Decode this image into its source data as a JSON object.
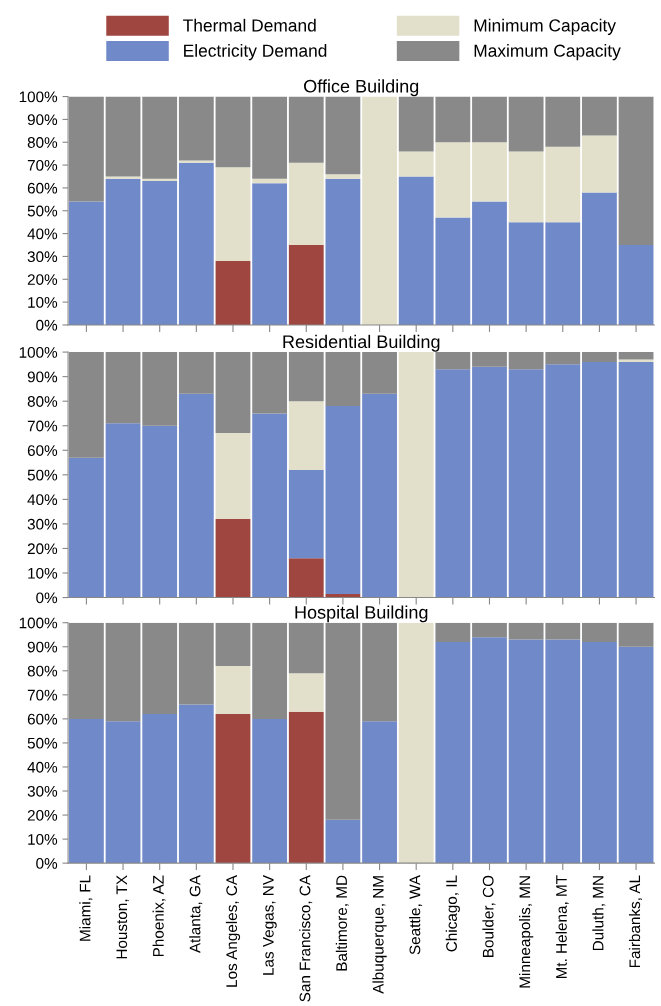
{
  "chart_data": [
    {
      "type": "bar",
      "title": "Office Building",
      "stacked": true,
      "legend": "top",
      "tick_labels": "y",
      "categories": [
        null,
        null,
        null,
        null,
        null,
        null,
        null,
        null,
        null,
        null,
        null,
        null,
        null,
        null,
        null,
        null
      ],
      "ylim": [
        0,
        100
      ],
      "yticks": [
        {
          "value": 0,
          "label": "0%"
        },
        {
          "value": 10,
          "label": "10%"
        },
        {
          "value": 20,
          "label": "20%"
        },
        {
          "value": 30,
          "label": "30%"
        },
        {
          "value": 40,
          "label": "40%"
        },
        {
          "value": 50,
          "label": "50%"
        },
        {
          "value": 60,
          "label": "60%"
        },
        {
          "value": 70,
          "label": "70%"
        },
        {
          "value": 80,
          "label": "80%"
        },
        {
          "value": 90,
          "label": "90%"
        },
        {
          "value": 100,
          "label": "100%"
        }
      ],
      "series": [
        {
          "name": "Thermal Demand",
          "color": "#a04641",
          "values": [
            0,
            0,
            0,
            0,
            28,
            0,
            35,
            0,
            0,
            0,
            0,
            0,
            0,
            0,
            0,
            0
          ]
        },
        {
          "name": "Electricity Demand",
          "color": "#7089c8",
          "values": [
            54,
            64,
            63,
            71,
            0,
            62,
            0,
            64,
            0,
            65,
            47,
            54,
            45,
            45,
            58,
            35
          ]
        },
        {
          "name": "Minimum Capacity",
          "color": "#e2dfcb",
          "values": [
            0,
            1,
            1,
            1,
            41,
            2,
            36,
            2,
            100,
            11,
            33,
            26,
            31,
            33,
            25,
            0
          ]
        },
        {
          "name": "Maximum Capacity",
          "color": "#898989",
          "values": [
            46,
            35,
            36,
            28,
            31,
            36,
            29,
            34,
            0,
            24,
            20,
            20,
            24,
            22,
            17,
            65
          ]
        }
      ]
    },
    {
      "type": "bar",
      "title": "Residential Building",
      "stacked": true,
      "tick_labels": "y",
      "categories": [
        null,
        null,
        null,
        null,
        null,
        null,
        null,
        null,
        null,
        null,
        null,
        null,
        null,
        null,
        null,
        null
      ],
      "ylim": [
        0,
        100
      ],
      "yticks": [
        {
          "value": 0,
          "label": "0%"
        },
        {
          "value": 10,
          "label": "10%"
        },
        {
          "value": 20,
          "label": "20%"
        },
        {
          "value": 30,
          "label": "30%"
        },
        {
          "value": 40,
          "label": "40%"
        },
        {
          "value": 50,
          "label": "50%"
        },
        {
          "value": 60,
          "label": "60%"
        },
        {
          "value": 70,
          "label": "70%"
        },
        {
          "value": 80,
          "label": "80%"
        },
        {
          "value": 90,
          "label": "90%"
        },
        {
          "value": 100,
          "label": "100%"
        }
      ],
      "series": [
        {
          "color": "#a04641",
          "values": [
            0,
            0,
            0,
            0,
            32,
            0,
            16,
            1.5,
            0,
            0,
            0,
            0,
            0,
            0,
            0,
            0
          ]
        },
        {
          "color": "#7089c8",
          "values": [
            57,
            71,
            70,
            83,
            0,
            75,
            36,
            76.5,
            83,
            0,
            93,
            94,
            93,
            95,
            96,
            96
          ]
        },
        {
          "color": "#e2dfcb",
          "values": [
            0,
            0,
            0,
            0,
            35,
            0,
            28,
            0,
            0,
            100,
            0,
            0,
            0,
            0,
            0,
            1
          ]
        },
        {
          "color": "#898989",
          "values": [
            43,
            29,
            30,
            17,
            33,
            25,
            20,
            22,
            17,
            0,
            7,
            6,
            7,
            5,
            4,
            3
          ]
        }
      ]
    },
    {
      "type": "bar",
      "title": "Hospital Building",
      "stacked": true,
      "categories": [
        "Miami, FL",
        "Houston, TX",
        "Phoenix, AZ",
        "Atlanta, GA",
        "Los Angeles, CA",
        "Las Vegas, NV",
        "San Francisco, CA",
        "Baltimore, MD",
        "Albuquerque, NM",
        "Seattle, WA",
        "Chicago, IL",
        "Boulder, CO",
        "Minneapolis, MN",
        "Mt. Helena, MT",
        "Duluth, MN",
        "Fairbanks, AL"
      ],
      "ylim": [
        0,
        100
      ],
      "yticks": [
        {
          "value": 0,
          "label": "0%"
        },
        {
          "value": 10,
          "label": "10%"
        },
        {
          "value": 20,
          "label": "20%"
        },
        {
          "value": 30,
          "label": "30%"
        },
        {
          "value": 40,
          "label": "40%"
        },
        {
          "value": 50,
          "label": "50%"
        },
        {
          "value": 60,
          "label": "60%"
        },
        {
          "value": 70,
          "label": "70%"
        },
        {
          "value": 80,
          "label": "80%"
        },
        {
          "value": 90,
          "label": "90%"
        },
        {
          "value": 100,
          "label": "100%"
        }
      ],
      "series": [
        {
          "color": "#a04641",
          "values": [
            0,
            0,
            0,
            0,
            62,
            0,
            63,
            0,
            0,
            0,
            0,
            0,
            0,
            0,
            0,
            0
          ]
        },
        {
          "color": "#7089c8",
          "values": [
            60,
            59,
            62,
            66,
            0,
            60,
            0,
            18,
            59,
            0,
            92,
            94,
            93,
            93,
            92,
            90
          ]
        },
        {
          "color": "#e2dfcb",
          "values": [
            0,
            0,
            0,
            0,
            20,
            0,
            16,
            0,
            0,
            100,
            0,
            0,
            0,
            0,
            0,
            0
          ]
        },
        {
          "color": "#898989",
          "values": [
            40,
            41,
            38,
            34,
            18,
            40,
            21,
            82,
            41,
            0,
            8,
            6,
            7,
            7,
            8,
            10
          ]
        }
      ]
    }
  ]
}
